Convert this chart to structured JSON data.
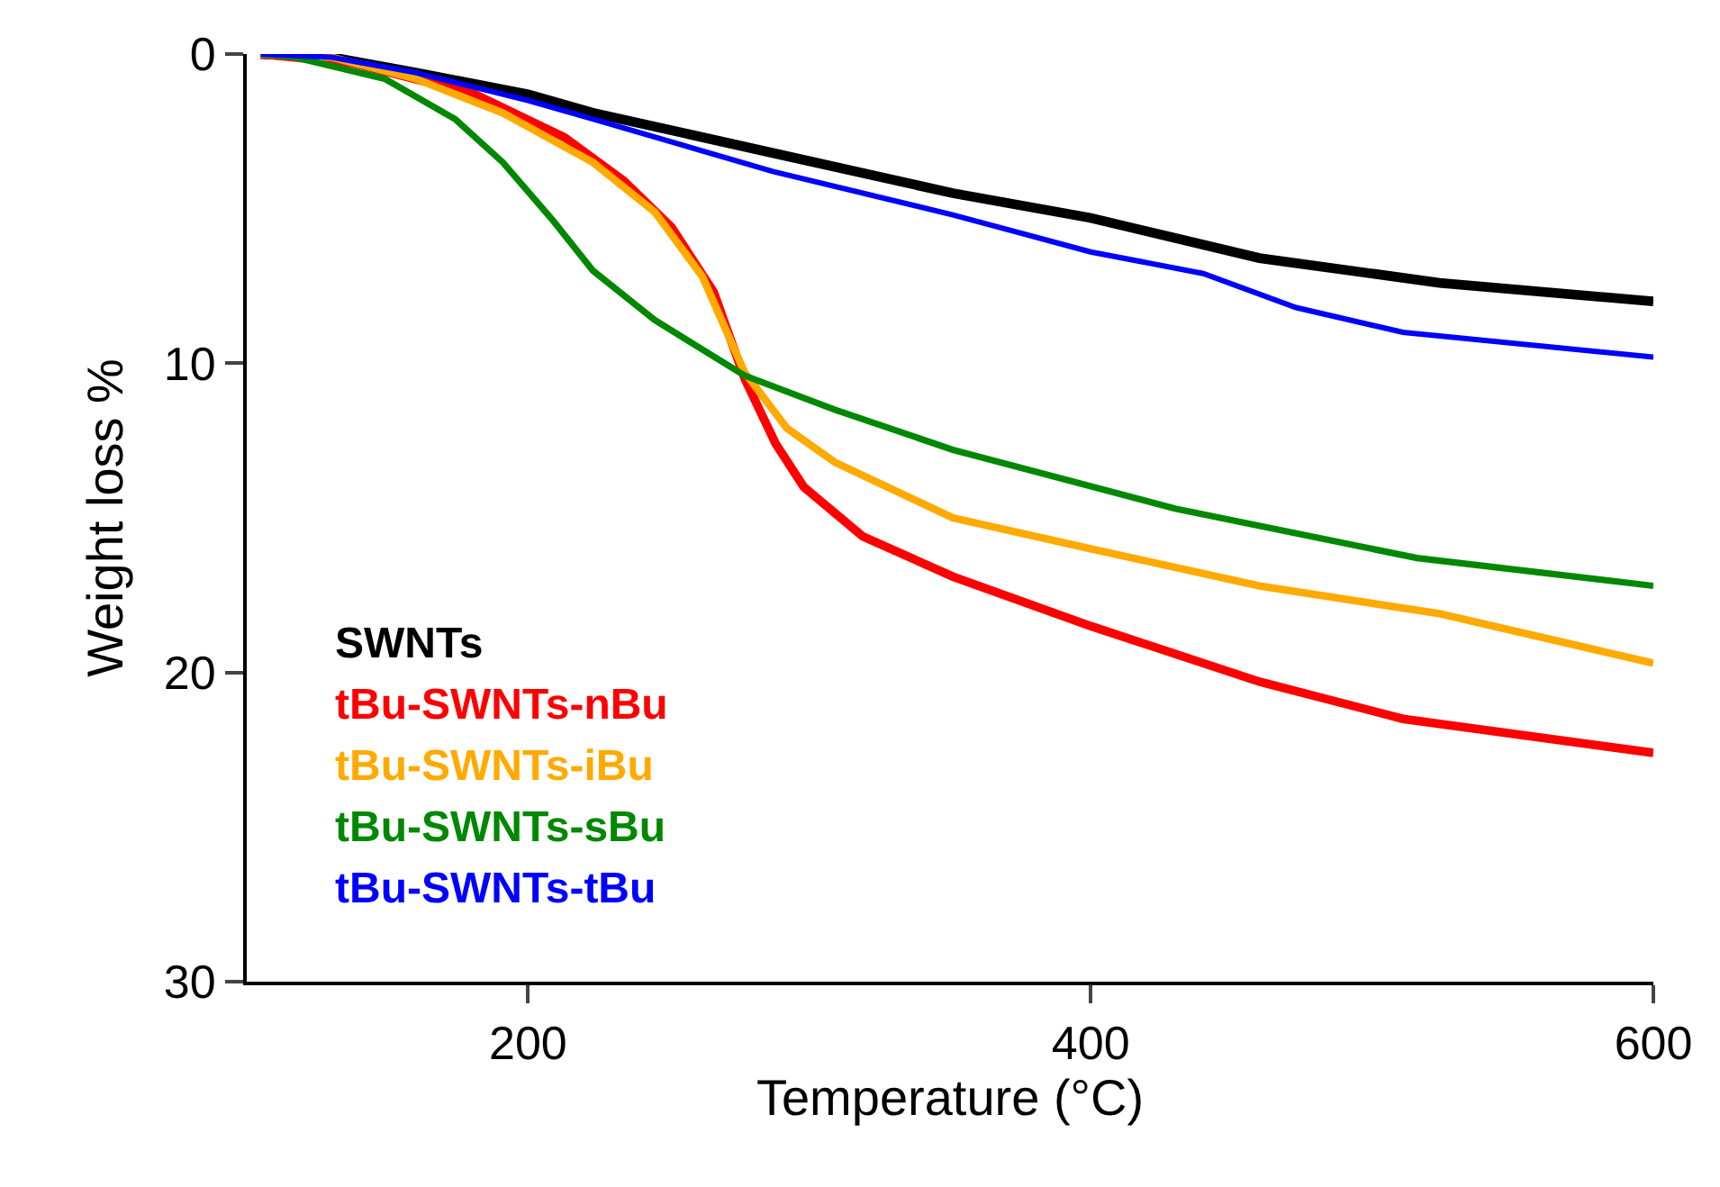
{
  "chart_data": {
    "type": "line",
    "xlabel": "Temperature (°C)",
    "ylabel": "Weight loss %",
    "xlim": [
      100,
      600
    ],
    "xticks": [
      200,
      400,
      600
    ],
    "ylim": [
      30,
      0
    ],
    "yticks": [
      0,
      10,
      20,
      30
    ],
    "legend": "bottom left",
    "marker": "none",
    "line_style": "solid",
    "series": [
      {
        "name": "SWNTs",
        "color": "#000000",
        "x": [
          105,
          130,
          160,
          200,
          223,
          287,
          351,
          400,
          460,
          524,
          600
        ],
        "values": [
          0,
          0.1,
          0.6,
          1.3,
          1.9,
          3.2,
          4.5,
          5.3,
          6.6,
          7.4,
          8.0
        ]
      },
      {
        "name": "tBu-SWNTs-nBu",
        "color": "#ff0000",
        "x": [
          105,
          138,
          181,
          213,
          234,
          251,
          266,
          277,
          288,
          298,
          319,
          351,
          400,
          460,
          511,
          600
        ],
        "values": [
          0,
          0.3,
          1.3,
          2.7,
          4.1,
          5.6,
          7.7,
          10.5,
          12.6,
          14.0,
          15.6,
          16.9,
          18.5,
          20.3,
          21.5,
          22.6
        ]
      },
      {
        "name": "tBu-SWNTs-iBu",
        "color": "#ffaa00",
        "x": [
          105,
          130,
          160,
          191,
          223,
          245,
          262,
          277,
          292,
          309,
          351,
          400,
          460,
          524,
          600
        ],
        "values": [
          0,
          0.1,
          0.8,
          1.9,
          3.5,
          5.1,
          7.2,
          10.3,
          12.1,
          13.2,
          15.0,
          16.0,
          17.2,
          18.1,
          19.7
        ]
      },
      {
        "name": "tBu-SWNTs-sBu",
        "color": "#008800",
        "x": [
          105,
          117,
          149,
          174,
          191,
          209,
          223,
          245,
          277,
          309,
          351,
          430,
          516,
          600
        ],
        "values": [
          0,
          0.1,
          0.8,
          2.1,
          3.5,
          5.4,
          7.0,
          8.6,
          10.4,
          11.5,
          12.8,
          14.7,
          16.3,
          17.2
        ]
      },
      {
        "name": "tBu-SWNTs-tBu",
        "color": "#0000ff",
        "x": [
          105,
          130,
          160,
          200,
          223,
          287,
          351,
          400,
          440,
          473,
          511,
          600
        ],
        "values": [
          0,
          0.1,
          0.6,
          1.5,
          2.1,
          3.8,
          5.2,
          6.4,
          7.1,
          8.2,
          9.0,
          9.8
        ]
      }
    ]
  }
}
